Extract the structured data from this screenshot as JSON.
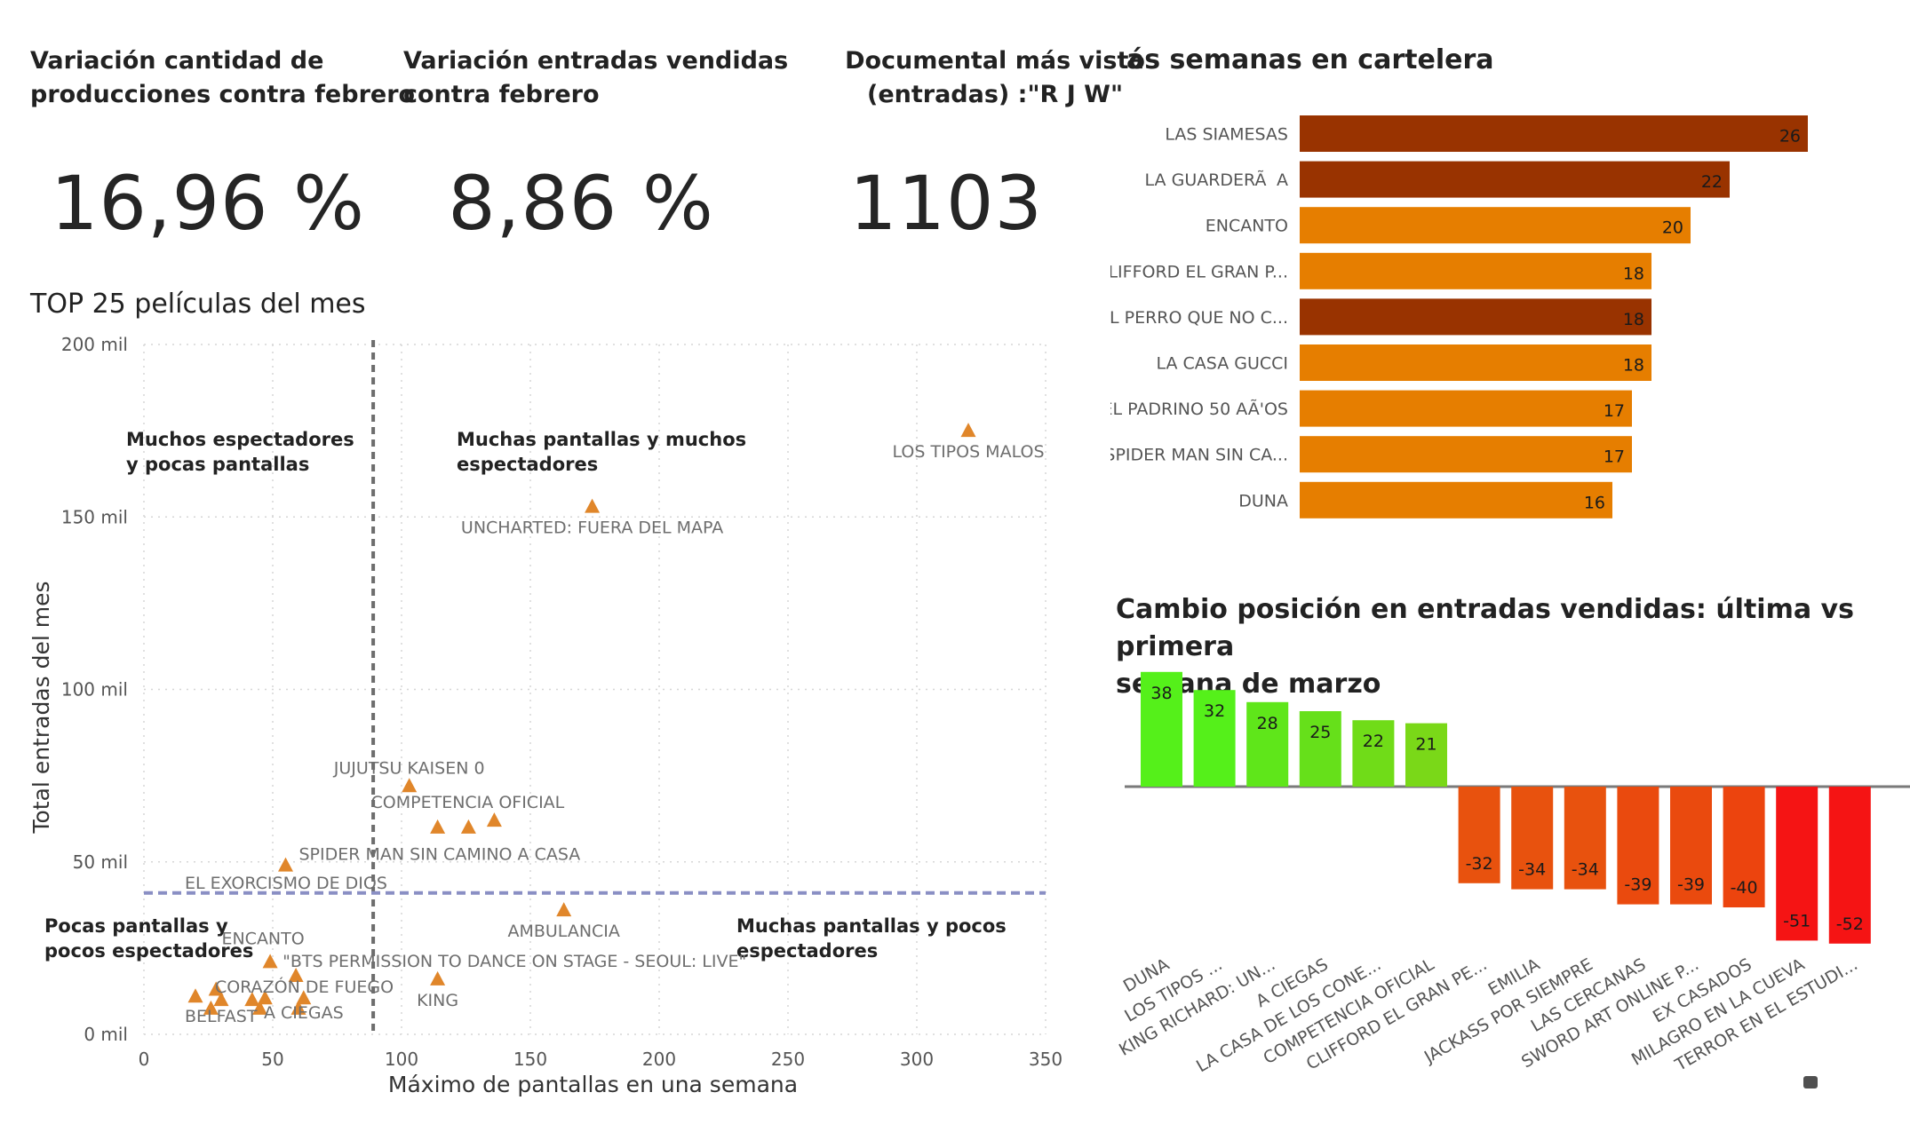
{
  "cards": [
    {
      "title_line1": "Variación cantidad de",
      "title_line2": "producciones contra febrero",
      "value": "16,96 %"
    },
    {
      "title_line1": "Variación entradas vendidas",
      "title_line2": "contra febrero",
      "value": "8,86 %"
    },
    {
      "title_line1": "Documental más visto",
      "title_line2": "(entradas) :\"R J W\"",
      "value": "1103"
    }
  ],
  "scatter": {
    "title": "TOP 25 películas del mes",
    "chart_data": {
      "type": "scatter",
      "xlabel": "Máximo de pantallas en una semana",
      "ylabel": "Total entradas del mes",
      "xlim": [
        0,
        350
      ],
      "ylim": [
        0,
        200000
      ],
      "x_ticks": [
        0,
        50,
        100,
        150,
        200,
        250,
        300,
        350
      ],
      "x_tick_labels": [
        "0",
        "50",
        "100",
        "150",
        "200",
        "250",
        "300",
        "350"
      ],
      "y_ticks": [
        0,
        50000,
        100000,
        150000,
        200000
      ],
      "y_tick_labels": [
        "0 mil",
        "50 mil",
        "100 mil",
        "150 mil",
        "200 mil"
      ],
      "grid": true,
      "reference_lines": {
        "x": 89,
        "y": 41000
      },
      "marker_color": "#e0862a",
      "points": [
        {
          "x": 320,
          "y": 175000,
          "label": "LOS TIPOS MALOS"
        },
        {
          "x": 174,
          "y": 153000,
          "label": "UNCHARTED: FUERA DEL MAPA"
        },
        {
          "x": 103,
          "y": 72000,
          "label": "JUJUTSU KAISEN 0"
        },
        {
          "x": 114,
          "y": 60000,
          "label": ""
        },
        {
          "x": 126,
          "y": 60000,
          "label": ""
        },
        {
          "x": 136,
          "y": 62000,
          "label": "COMPETENCIA OFICIAL"
        },
        {
          "x": 55,
          "y": 49000,
          "label": "SPIDER MAN SIN CAMINO A CASA"
        },
        {
          "x": 163,
          "y": 36000,
          "label": "AMBULANCIA"
        },
        {
          "x": 49,
          "y": 21000,
          "label": "ENCANTO"
        },
        {
          "x": 59,
          "y": 17000,
          "label": "\"BTS PERMISSION TO DANCE ON STAGE - SEOUL: LIVE\""
        },
        {
          "x": 114,
          "y": 16000,
          "label": "KING"
        },
        {
          "x": 20,
          "y": 11000,
          "label": ""
        },
        {
          "x": 28,
          "y": 13000,
          "label": ""
        },
        {
          "x": 30,
          "y": 10000,
          "label": ""
        },
        {
          "x": 26,
          "y": 7500,
          "label": ""
        },
        {
          "x": 42,
          "y": 10000,
          "label": ""
        },
        {
          "x": 47,
          "y": 10500,
          "label": ""
        },
        {
          "x": 45,
          "y": 7500,
          "label": ""
        },
        {
          "x": 62,
          "y": 10500,
          "label": ""
        },
        {
          "x": 60,
          "y": 7500,
          "label": ""
        }
      ],
      "annotations": [
        {
          "text": "EL EXORCISMO DE DIOS"
        },
        {
          "text": "CORAZÓN DE FUEGO"
        },
        {
          "text": "BELFAST"
        },
        {
          "text": "A CIEGAS"
        }
      ],
      "quadrants": [
        {
          "line1": "Muchos espectadores",
          "line2": "y pocas pantallas"
        },
        {
          "line1": "Muchas pantallas y muchos",
          "line2": "espectadores"
        },
        {
          "line1": "Pocas pantallas y",
          "line2": "pocos espectadores"
        },
        {
          "line1": "Muchas pantallas y pocos",
          "line2": "espectadores"
        }
      ]
    }
  },
  "weeks": {
    "title": "ás semanas en cartelera",
    "chart_data": {
      "type": "bar",
      "orientation": "horizontal",
      "xlim": [
        0,
        26
      ],
      "categories": [
        "LAS SIAMESAS",
        "LA GUARDERÃA",
        "ENCANTO",
        "LIFFORD EL GRAN P...",
        "EL PERRO QUE NO C...",
        "LA CASA GUCCI",
        "EL PADRINO 50 AÃ'OS",
        "SPIDER MAN SIN CA...",
        "DUNA"
      ],
      "values": [
        26,
        22,
        20,
        18,
        18,
        18,
        17,
        17,
        16
      ],
      "colors": [
        "#993300",
        "#993300",
        "#e67e00",
        "#e67e00",
        "#993300",
        "#e67e00",
        "#e67e00",
        "#e67e00",
        "#e67e00"
      ]
    }
  },
  "change": {
    "title_line1": "Cambio posición en entradas vendidas: última vs primera",
    "title_line2": "semana de marzo",
    "chart_data": {
      "type": "bar",
      "ylim": [
        -52,
        38
      ],
      "categories": [
        "DUNA",
        "LOS TIPOS ...",
        "KING RICHARD: UN...",
        "A CIEGAS",
        "LA CASA DE LOS CONE...",
        "COMPETENCIA OFICIAL",
        "CLIFFORD EL GRAN PE...",
        "EMILIA",
        "JACKASS POR SIEMPRE",
        "LAS CERCANAS",
        "SWORD ART ONLINE P...",
        "EX CASADOS",
        "MILAGRO EN LA CUEVA",
        "TERROR EN EL ESTUDI..."
      ],
      "values": [
        38,
        32,
        28,
        25,
        22,
        21,
        -32,
        -34,
        -34,
        -39,
        -39,
        -40,
        -51,
        -52
      ],
      "colors": [
        "#55f01a",
        "#55f01a",
        "#5fe61a",
        "#66e01a",
        "#70dc18",
        "#7ad818",
        "#e8520e",
        "#e8520e",
        "#e8520e",
        "#ea4a0e",
        "#ea4a0e",
        "#ec440e",
        "#f51414",
        "#f51414"
      ]
    }
  }
}
